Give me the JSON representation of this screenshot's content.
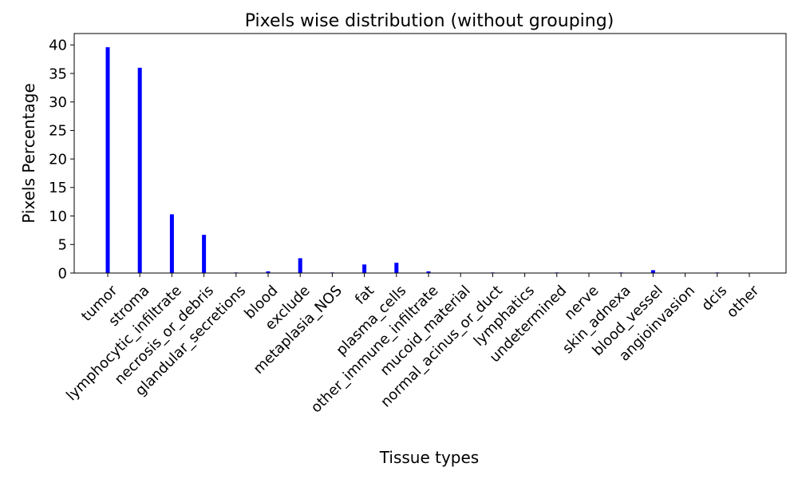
{
  "chart_data": {
    "type": "bar",
    "title": "Pixels wise distribution (without grouping)",
    "xlabel": "Tissue types",
    "ylabel": "Pixels Percentage",
    "ylim": [
      0,
      42
    ],
    "yticks": [
      0,
      5,
      10,
      15,
      20,
      25,
      30,
      35,
      40
    ],
    "grid": false,
    "bar_color": "#0000ff",
    "categories": [
      "tumor",
      "stroma",
      "lymphocytic_infiltrate",
      "necrosis_or_debris",
      "glandular_secretions",
      "blood",
      "exclude",
      "metaplasia_NOS",
      "fat",
      "plasma_cells",
      "other_immune_infiltrate",
      "mucoid_material",
      "normal_acinus_or_duct",
      "lymphatics",
      "undetermined",
      "nerve",
      "skin_adnexa",
      "blood_vessel",
      "angioinvasion",
      "dcis",
      "other"
    ],
    "values": [
      39.6,
      36.0,
      10.3,
      6.7,
      0.1,
      0.3,
      2.6,
      0.1,
      1.5,
      1.8,
      0.3,
      0.0,
      0.1,
      0.0,
      0.1,
      0.0,
      0.1,
      0.5,
      0.0,
      0.1,
      0.0
    ]
  }
}
